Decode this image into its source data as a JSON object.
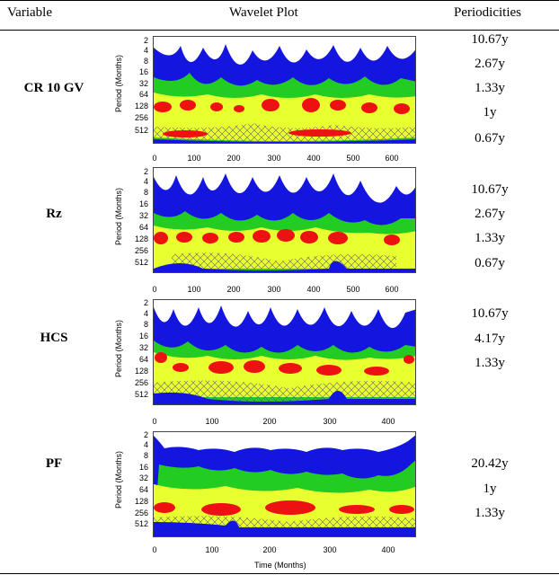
{
  "headers": {
    "variable": "Variable",
    "plot": "Wavelet Plot",
    "periodicities": "Periodicities"
  },
  "y_label": "Period (Months)",
  "x_label": "Time (Months)",
  "colors": {
    "blue": "#1515e0",
    "green": "#22cc22",
    "yellow": "#e8ff30",
    "red": "#ee1111",
    "hatch": "#666666"
  },
  "rows": [
    {
      "variable": "CR 10 GV",
      "y_ticks": [
        "2",
        "4",
        "8",
        "16",
        "32",
        "64",
        "128",
        "256",
        "512"
      ],
      "x_ticks": [
        "0",
        "100",
        "200",
        "300",
        "400",
        "500",
        "600"
      ],
      "x_max": 650,
      "periodicities": [
        "10.67y",
        "2.67y",
        "1.33y",
        "1y",
        "0.67y"
      ]
    },
    {
      "variable": "Rz",
      "y_ticks": [
        "2",
        "4",
        "8",
        "16",
        "32",
        "64",
        "128",
        "256",
        "512"
      ],
      "x_ticks": [
        "0",
        "100",
        "200",
        "300",
        "400",
        "500",
        "600"
      ],
      "x_max": 650,
      "periodicities": [
        "10.67y",
        "2.67y",
        "1.33y",
        "0.67y"
      ]
    },
    {
      "variable": "HCS",
      "y_ticks": [
        "2",
        "4",
        "8",
        "16",
        "32",
        "64",
        "128",
        "256",
        "512"
      ],
      "x_ticks": [
        "0",
        "100",
        "200",
        "300",
        "400"
      ],
      "x_max": 450,
      "periodicities": [
        "10.67y",
        "4.17y",
        "1.33y"
      ]
    },
    {
      "variable": "PF",
      "y_ticks": [
        "2",
        "4",
        "8",
        "16",
        "32",
        "64",
        "128",
        "256",
        "512"
      ],
      "x_ticks": [
        "0",
        "100",
        "200",
        "300",
        "400"
      ],
      "x_max": 450,
      "periodicities": [
        "20.42y",
        "1y",
        "1.33y"
      ]
    }
  ]
}
